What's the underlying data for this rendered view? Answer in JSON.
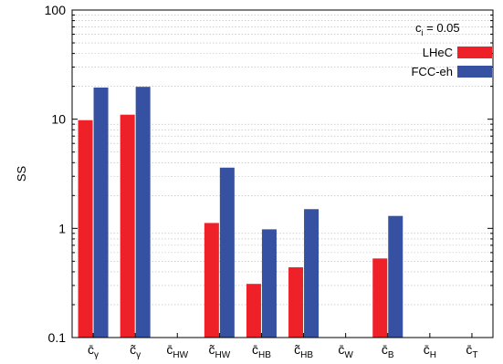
{
  "chart_data": {
    "type": "bar",
    "scale": "log",
    "ylim": [
      0.1,
      100
    ],
    "y_ticks": [
      "0.1",
      "1",
      "10",
      "100"
    ],
    "ylabel": "SS",
    "grid": "horizontal dotted",
    "legend_placement": "top-right",
    "legend_title": {
      "base": "c",
      "sub": "i",
      "rest": " = 0.05"
    },
    "categories": [
      {
        "base": "c̄",
        "sub": "γ"
      },
      {
        "base": "c̃",
        "sub": "γ"
      },
      {
        "base": "c̄",
        "sub": "HW"
      },
      {
        "base": "c̃",
        "sub": "HW"
      },
      {
        "base": "c̄",
        "sub": "HB"
      },
      {
        "base": "c̃",
        "sub": "HB"
      },
      {
        "base": "c̄",
        "sub": "W"
      },
      {
        "base": "c̄",
        "sub": "B"
      },
      {
        "base": "c̄",
        "sub": "H"
      },
      {
        "base": "c̄",
        "sub": "T"
      }
    ],
    "series": [
      {
        "name": "LHeC",
        "color": "#ee2028",
        "values": [
          9.8,
          11,
          null,
          1.12,
          0.31,
          0.44,
          null,
          0.53,
          null,
          null
        ]
      },
      {
        "name": "FCC-eh",
        "color": "#3650a2",
        "values": [
          19.5,
          19.8,
          null,
          3.6,
          0.98,
          1.5,
          null,
          1.3,
          null,
          null
        ]
      }
    ]
  }
}
